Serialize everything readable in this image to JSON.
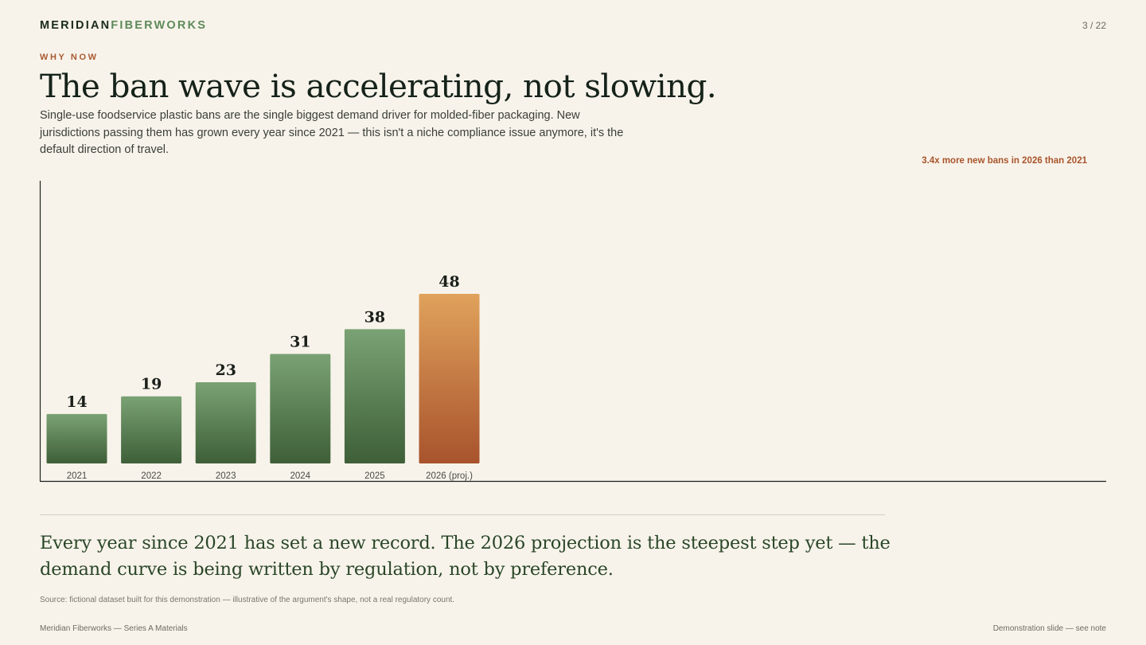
{
  "brand": {
    "part1": "MERIDIAN",
    "part2": "FIBERWORKS"
  },
  "page_number": "3 / 22",
  "eyebrow": "WHY NOW",
  "title": "The ban wave is accelerating, not slowing.",
  "subtitle": "Single-use foodservice plastic bans are the single biggest demand driver for molded-fiber packaging. New jurisdictions passing them has grown every year since 2021 — this isn't a niche compliance issue anymore, it's the default direction of travel.",
  "callout": "3.4x more new bans in 2026 than 2021",
  "takeaway": "Every year since 2021 has set a new record. The 2026 projection is the steepest step yet — the demand curve is being written by regulation, not by preference.",
  "source": "Source: fictional dataset built for this demonstration — illustrative of the argument's shape, not a real regulatory count.",
  "footer_left": "Meridian Fiberworks — Series A Materials",
  "footer_right": "Demonstration slide — see note",
  "colors": {
    "green_top": "#7aa274",
    "green_bottom": "#3e5f38",
    "orange_top": "#e0a25c",
    "orange_bottom": "#a8532c",
    "accent": "#a9552c"
  },
  "chart_data": {
    "type": "bar",
    "categories": [
      "2021",
      "2022",
      "2023",
      "2024",
      "2025",
      "2026 (proj.)"
    ],
    "values": [
      14,
      19,
      23,
      31,
      38,
      48
    ],
    "highlight": "2026 (proj.)",
    "title": "",
    "xlabel": "",
    "ylabel": "",
    "ylim": [
      0,
      80
    ],
    "grid": false,
    "legend": "none",
    "annotation": "3.4x more new bans in 2026 than 2021"
  }
}
